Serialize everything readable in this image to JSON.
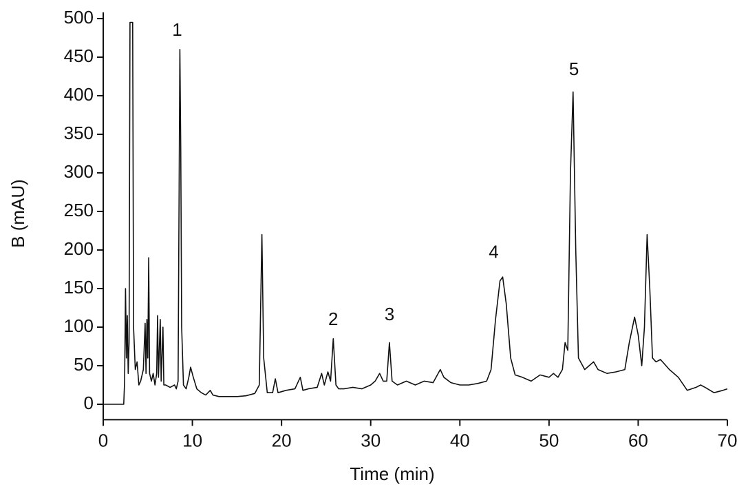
{
  "chart_data": {
    "type": "line",
    "xlabel": "Time (min)",
    "ylabel": "B (mAU)",
    "xlim": [
      0,
      70
    ],
    "ylim": [
      -20,
      500
    ],
    "xticks": [
      0,
      10,
      20,
      30,
      40,
      50,
      60,
      70
    ],
    "yticks": [
      0,
      50,
      100,
      150,
      200,
      250,
      300,
      350,
      400,
      450,
      500
    ],
    "color": "#111111",
    "annotations": [
      {
        "text": "1",
        "x": 8.3,
        "y": 484
      },
      {
        "text": "2",
        "x": 25.8,
        "y": 109
      },
      {
        "text": "3",
        "x": 32.1,
        "y": 115
      },
      {
        "text": "4",
        "x": 43.8,
        "y": 196
      },
      {
        "text": "5",
        "x": 52.8,
        "y": 433
      }
    ],
    "x": [
      0,
      2.3,
      2.4,
      2.5,
      2.6,
      2.7,
      2.8,
      2.9,
      3.0,
      3.1,
      3.2,
      3.3,
      3.4,
      3.6,
      3.8,
      4.0,
      4.2,
      4.5,
      4.7,
      4.8,
      4.9,
      5.0,
      5.1,
      5.2,
      5.4,
      5.6,
      5.8,
      6.0,
      6.1,
      6.2,
      6.4,
      6.5,
      6.7,
      6.8,
      7.0,
      7.5,
      8.0,
      8.2,
      8.4,
      8.6,
      8.7,
      8.8,
      9.0,
      9.3,
      9.6,
      9.8,
      10.1,
      10.5,
      11.0,
      11.5,
      12.0,
      12.3,
      13,
      14,
      15,
      16,
      17,
      17.5,
      17.8,
      18.0,
      18.4,
      19.0,
      19.3,
      19.6,
      20.5,
      21.5,
      22.1,
      22.4,
      23,
      24,
      24.5,
      24.8,
      25.2,
      25.5,
      25.8,
      26.1,
      26.4,
      27,
      28,
      29,
      30,
      30.5,
      31,
      31.4,
      31.8,
      32.1,
      32.4,
      33,
      34,
      35,
      36,
      37,
      37.8,
      38.2,
      39,
      40,
      41,
      42,
      43,
      43.5,
      44,
      44.5,
      44.8,
      45.2,
      45.7,
      46.2,
      47,
      48,
      49,
      50,
      50.5,
      51,
      51.5,
      51.8,
      52.1,
      52.4,
      52.7,
      53.0,
      53.3,
      54,
      55,
      55.5,
      56.5,
      57.5,
      58.5,
      59,
      59.6,
      60,
      60.4,
      60.7,
      61.0,
      61.3,
      61.6,
      62,
      62.5,
      63.5,
      64.5,
      65.5,
      66.5,
      67,
      67.5,
      68.5,
      69.5,
      70
    ],
    "y": [
      0,
      0,
      30,
      150,
      60,
      115,
      40,
      80,
      495,
      495,
      495,
      495,
      100,
      45,
      55,
      25,
      30,
      45,
      105,
      40,
      110,
      60,
      190,
      40,
      30,
      40,
      25,
      40,
      115,
      35,
      110,
      30,
      100,
      25,
      25,
      22,
      25,
      20,
      30,
      460,
      330,
      100,
      25,
      20,
      35,
      48,
      35,
      20,
      15,
      12,
      18,
      12,
      10,
      10,
      10,
      11,
      14,
      25,
      220,
      60,
      15,
      15,
      33,
      15,
      18,
      20,
      35,
      18,
      20,
      22,
      40,
      25,
      42,
      30,
      85,
      25,
      20,
      20,
      22,
      20,
      25,
      30,
      40,
      30,
      30,
      80,
      30,
      25,
      30,
      25,
      30,
      28,
      45,
      35,
      28,
      25,
      25,
      27,
      30,
      45,
      110,
      160,
      165,
      130,
      60,
      38,
      35,
      30,
      38,
      35,
      40,
      35,
      45,
      80,
      70,
      300,
      405,
      200,
      60,
      45,
      55,
      45,
      40,
      42,
      45,
      80,
      113,
      90,
      50,
      100,
      220,
      150,
      60,
      55,
      58,
      45,
      35,
      18,
      22,
      25,
      22,
      15,
      18,
      20
    ]
  }
}
